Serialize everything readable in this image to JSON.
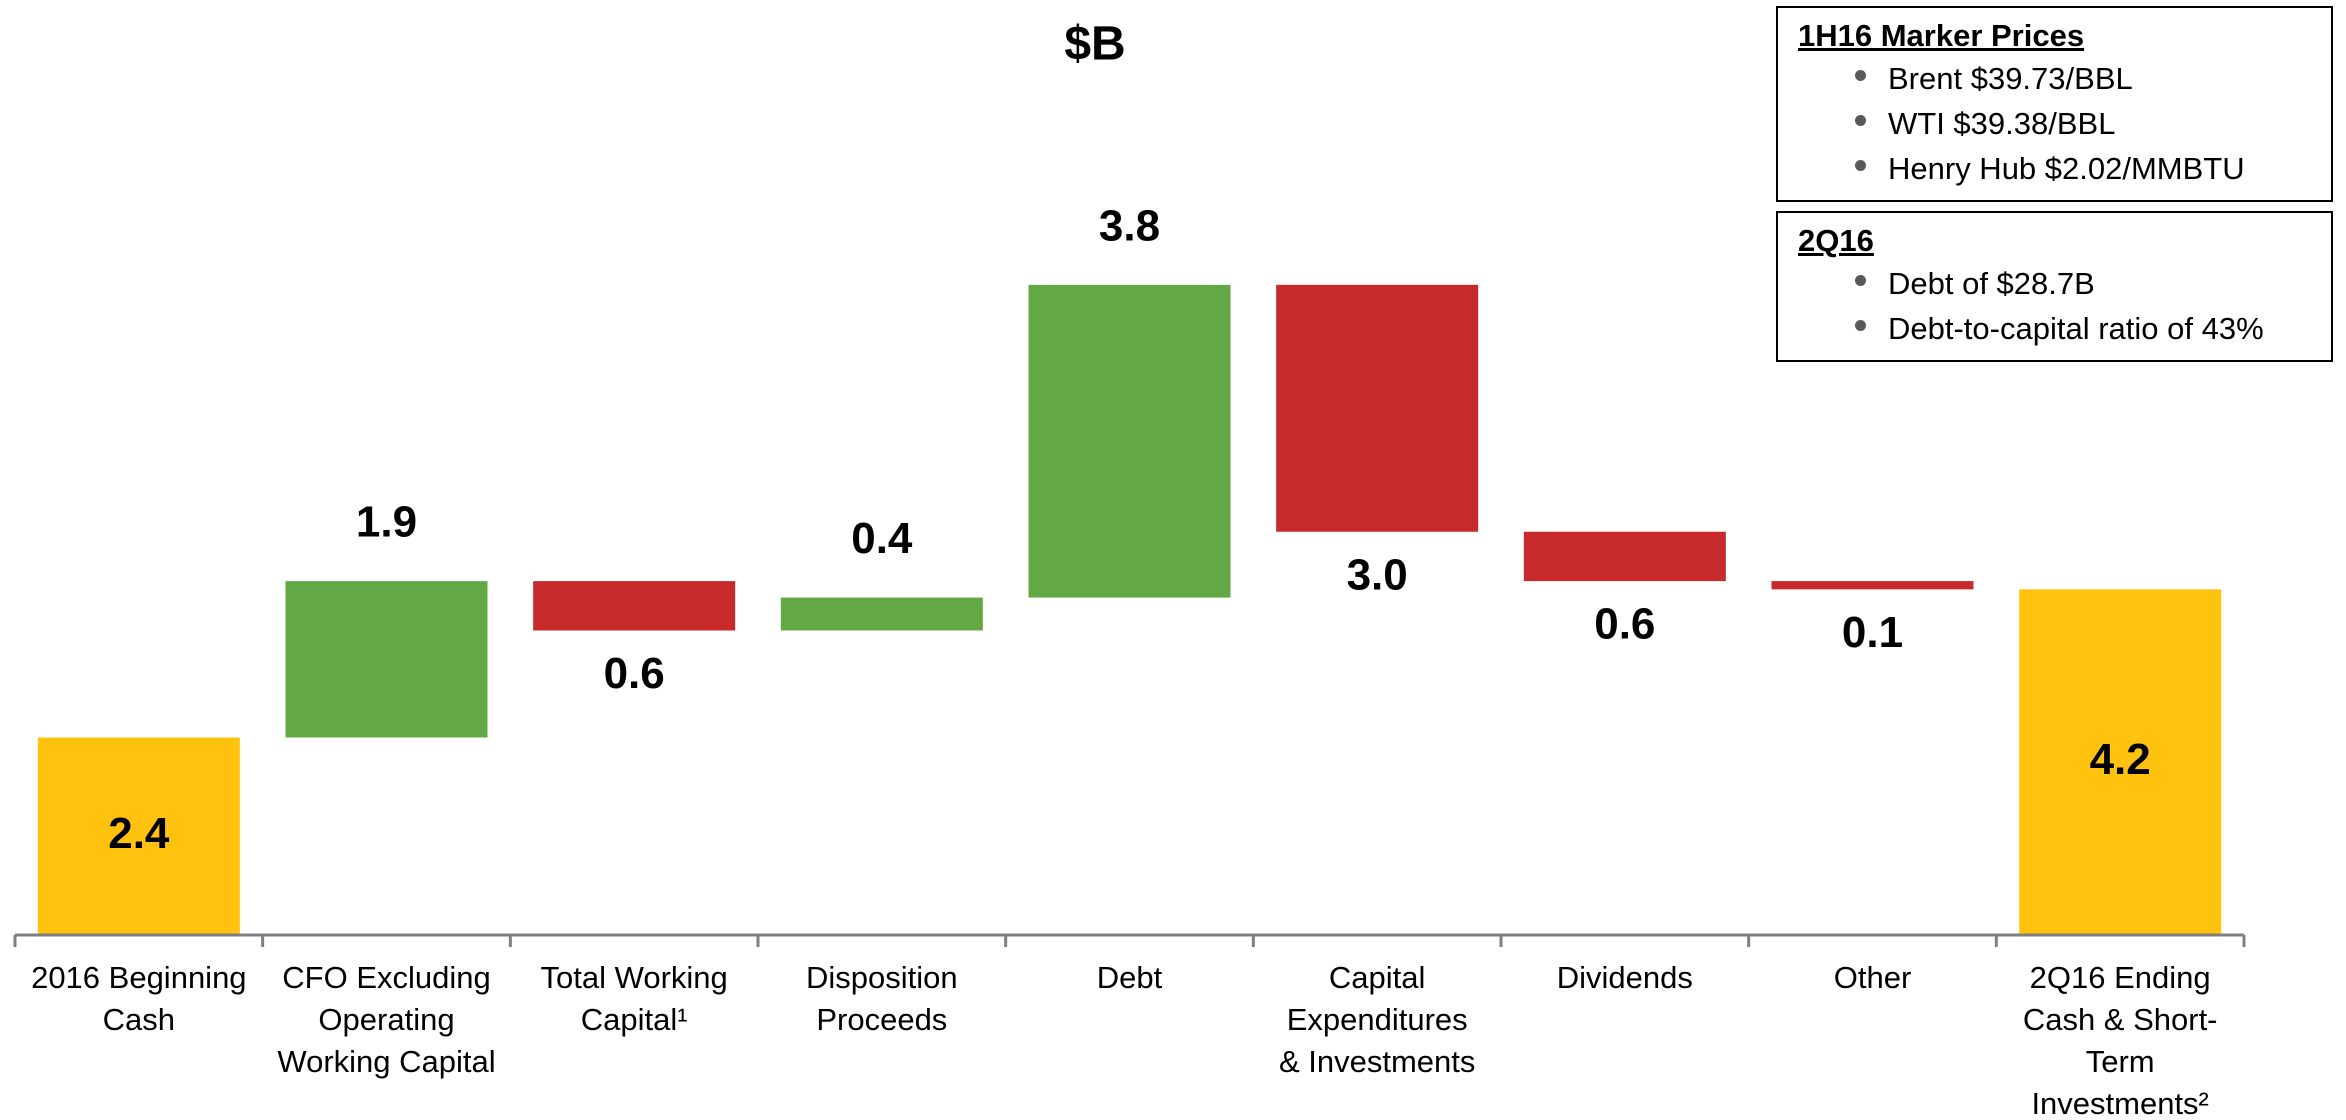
{
  "chart_data": {
    "type": "waterfall",
    "title": "$B",
    "categories": [
      [
        "2016 Beginning",
        "Cash"
      ],
      [
        "CFO Excluding",
        "Operating",
        "Working Capital"
      ],
      [
        "Total Working",
        "Capital¹"
      ],
      [
        "Disposition",
        "Proceeds"
      ],
      [
        "Debt"
      ],
      [
        "Capital",
        "Expenditures",
        "& Investments"
      ],
      [
        "Dividends"
      ],
      [
        "Other"
      ],
      [
        "2Q16 Ending",
        "Cash & Short-",
        "Term",
        "Investments²"
      ]
    ],
    "values": [
      2.4,
      1.9,
      0.6,
      0.4,
      3.8,
      3.0,
      0.6,
      0.1,
      4.2
    ],
    "value_labels": [
      "2.4",
      "1.9",
      "0.6",
      "0.4",
      "3.8",
      "3.0",
      "0.6",
      "0.1",
      "4.2"
    ],
    "measures": [
      "total",
      "increase",
      "decrease",
      "increase",
      "increase",
      "decrease",
      "decrease",
      "decrease",
      "total"
    ],
    "colors": {
      "total": "#FFC20E",
      "increase": "#62A945",
      "decrease": "#C8292A"
    },
    "annotations": [
      {
        "title": "1H16 Marker Prices",
        "items": [
          "Brent $39.73/BBL",
          "WTI $39.38/BBL",
          "Henry Hub $2.02/MMBTU"
        ]
      },
      {
        "title": "2Q16",
        "items": [
          "Debt of $28.7B",
          "Debt-to-capital ratio of 43%"
        ]
      }
    ]
  }
}
